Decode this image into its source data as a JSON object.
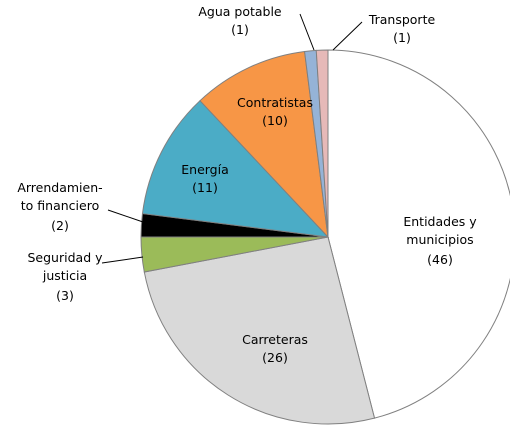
{
  "chart_data": {
    "type": "pie",
    "categories": [
      "Entidades y\nmunicipios",
      "Carreteras",
      "Seguridad y\njusticia",
      "Arrendamien-\nto financiero",
      "Energía",
      "Contratistas",
      "Agua potable",
      "Transporte"
    ],
    "values": [
      46,
      26,
      3,
      2,
      11,
      10,
      1,
      1
    ],
    "value_labels": [
      "(46)",
      "(26)",
      "(3)",
      "(2)",
      "(11)",
      "(10)",
      "(1)",
      "(1)"
    ],
    "colors": [
      "#ffffff",
      "#d9d9d9",
      "#9bbb59",
      "#000000",
      "#4bacc6",
      "#f79646",
      "#95b3d7",
      "#e6b9b8"
    ]
  }
}
